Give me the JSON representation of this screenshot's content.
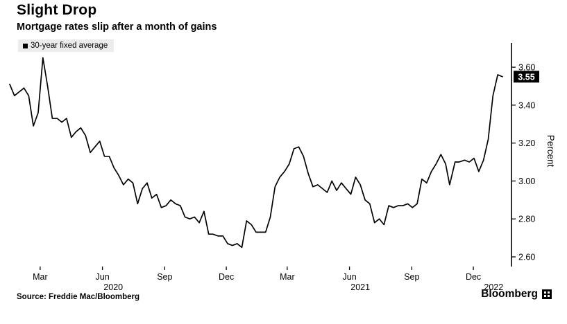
{
  "colors": {
    "line": "#000000",
    "axis": "#000000",
    "badge_bg": "#000000",
    "badge_text": "#ffffff",
    "legend_bg": "#ececec",
    "background": "#ffffff"
  },
  "footer": {
    "source": "Source: Freddie Mac/Bloomberg",
    "brand": "Bloomberg"
  },
  "chart_data": {
    "type": "line",
    "title": "Slight Drop",
    "subtitle": "Mortgage rates slip after a month of gains",
    "legend_label": "30-year fixed average",
    "xlabel": "",
    "ylabel": "Percent",
    "ylim": [
      2.549,
      3.728
    ],
    "grid": false,
    "legend_position": "top-left",
    "axis_side": "right",
    "last_value": {
      "value": 3.55,
      "label": "3.55"
    },
    "y_ticks": [
      {
        "v": 2.6,
        "label": "2.60"
      },
      {
        "v": 2.8,
        "label": "2.80"
      },
      {
        "v": 3.0,
        "label": "3.00"
      },
      {
        "v": 3.2,
        "label": "3.20"
      },
      {
        "v": 3.4,
        "label": "3.40"
      },
      {
        "v": 3.6,
        "label": "3.60"
      }
    ],
    "x_ticks": [
      {
        "label": "Mar",
        "date": "2020-03-15"
      },
      {
        "label": "Jun",
        "date": "2020-06-15"
      },
      {
        "label": "Sep",
        "date": "2020-09-15"
      },
      {
        "label": "Dec",
        "date": "2020-12-15"
      },
      {
        "label": "Mar",
        "date": "2021-03-15"
      },
      {
        "label": "Jun",
        "date": "2021-06-15"
      },
      {
        "label": "Sep",
        "date": "2021-09-15"
      },
      {
        "label": "Dec",
        "date": "2021-12-15"
      }
    ],
    "year_labels": [
      {
        "label": "2020",
        "date": "2020-07-01"
      },
      {
        "label": "2021",
        "date": "2021-07-01"
      },
      {
        "label": "2022",
        "date": "2022-01-14"
      }
    ],
    "dates": [
      "2020-01-30",
      "2020-02-06",
      "2020-02-13",
      "2020-02-20",
      "2020-02-27",
      "2020-03-05",
      "2020-03-12",
      "2020-03-19",
      "2020-03-26",
      "2020-04-02",
      "2020-04-09",
      "2020-04-16",
      "2020-04-23",
      "2020-04-30",
      "2020-05-07",
      "2020-05-14",
      "2020-05-21",
      "2020-05-28",
      "2020-06-04",
      "2020-06-11",
      "2020-06-18",
      "2020-06-25",
      "2020-07-02",
      "2020-07-09",
      "2020-07-16",
      "2020-07-23",
      "2020-07-30",
      "2020-08-06",
      "2020-08-13",
      "2020-08-20",
      "2020-08-27",
      "2020-09-03",
      "2020-09-10",
      "2020-09-17",
      "2020-09-24",
      "2020-10-01",
      "2020-10-08",
      "2020-10-15",
      "2020-10-22",
      "2020-10-29",
      "2020-11-05",
      "2020-11-12",
      "2020-11-19",
      "2020-11-25",
      "2020-12-03",
      "2020-12-10",
      "2020-12-17",
      "2020-12-24",
      "2020-12-31",
      "2021-01-07",
      "2021-01-14",
      "2021-01-21",
      "2021-01-28",
      "2021-02-04",
      "2021-02-11",
      "2021-02-18",
      "2021-02-25",
      "2021-03-04",
      "2021-03-11",
      "2021-03-18",
      "2021-03-25",
      "2021-04-01",
      "2021-04-08",
      "2021-04-15",
      "2021-04-22",
      "2021-04-29",
      "2021-05-06",
      "2021-05-13",
      "2021-05-20",
      "2021-05-27",
      "2021-06-03",
      "2021-06-10",
      "2021-06-17",
      "2021-06-24",
      "2021-07-01",
      "2021-07-08",
      "2021-07-15",
      "2021-07-22",
      "2021-07-29",
      "2021-08-05",
      "2021-08-12",
      "2021-08-19",
      "2021-08-26",
      "2021-09-02",
      "2021-09-09",
      "2021-09-16",
      "2021-09-23",
      "2021-09-30",
      "2021-10-07",
      "2021-10-14",
      "2021-10-21",
      "2021-10-28",
      "2021-11-04",
      "2021-11-10",
      "2021-11-18",
      "2021-11-24",
      "2021-12-02",
      "2021-12-09",
      "2021-12-16",
      "2021-12-23",
      "2021-12-30",
      "2022-01-06",
      "2022-01-13",
      "2022-01-20",
      "2022-01-27"
    ],
    "values": [
      3.51,
      3.45,
      3.47,
      3.49,
      3.45,
      3.29,
      3.36,
      3.65,
      3.5,
      3.33,
      3.33,
      3.31,
      3.33,
      3.23,
      3.26,
      3.28,
      3.24,
      3.15,
      3.18,
      3.21,
      3.13,
      3.13,
      3.07,
      3.03,
      2.98,
      3.01,
      2.99,
      2.88,
      2.96,
      2.99,
      2.91,
      2.93,
      2.86,
      2.87,
      2.9,
      2.88,
      2.87,
      2.81,
      2.8,
      2.81,
      2.78,
      2.84,
      2.72,
      2.72,
      2.71,
      2.71,
      2.67,
      2.66,
      2.67,
      2.65,
      2.79,
      2.77,
      2.73,
      2.73,
      2.73,
      2.81,
      2.97,
      3.02,
      3.05,
      3.09,
      3.17,
      3.18,
      3.13,
      3.04,
      2.97,
      2.98,
      2.96,
      2.94,
      3.0,
      2.95,
      2.99,
      2.96,
      2.93,
      3.02,
      2.98,
      2.9,
      2.88,
      2.78,
      2.8,
      2.77,
      2.87,
      2.86,
      2.87,
      2.87,
      2.88,
      2.86,
      2.88,
      3.01,
      2.99,
      3.05,
      3.09,
      3.14,
      3.09,
      2.98,
      3.1,
      3.1,
      3.11,
      3.1,
      3.12,
      3.05,
      3.11,
      3.22,
      3.45,
      3.56,
      3.55
    ]
  }
}
